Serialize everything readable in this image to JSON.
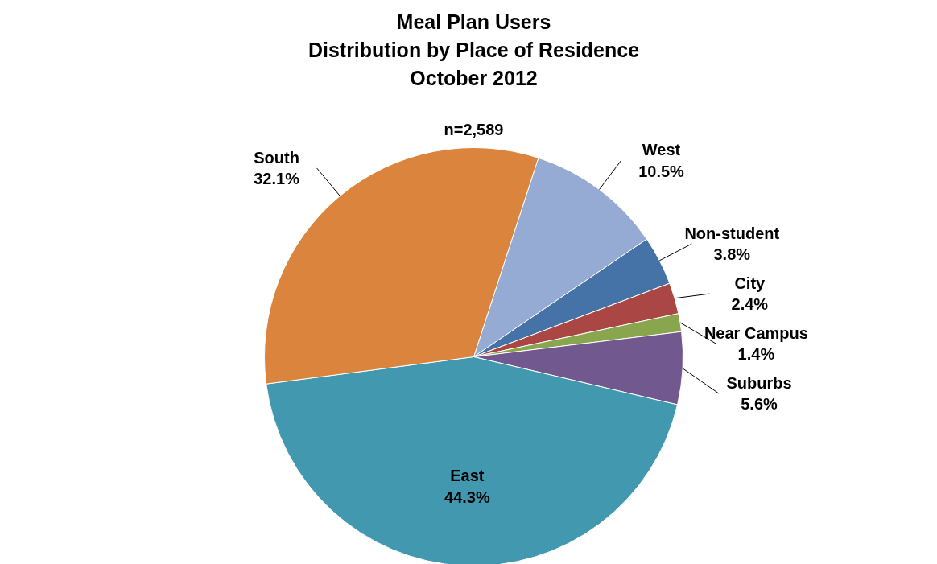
{
  "chart_data": {
    "type": "pie",
    "title": "Meal Plan Users\nDistribution by Place of Residence\nOctober 2012",
    "subtitle": "n=2,589",
    "categories": [
      "West",
      "Non-student",
      "City",
      "Near Campus",
      "Suburbs",
      "East",
      "South"
    ],
    "values": [
      10.5,
      3.8,
      2.4,
      1.4,
      5.6,
      44.3,
      32.1
    ],
    "value_labels": [
      "10.5%",
      "3.8%",
      "2.4%",
      "1.4%",
      "5.6%",
      "44.3%",
      "32.1%"
    ],
    "colors": [
      "#95abd4",
      "#4572a7",
      "#aa4643",
      "#89a54e",
      "#71588f",
      "#4198af",
      "#db843d"
    ]
  }
}
